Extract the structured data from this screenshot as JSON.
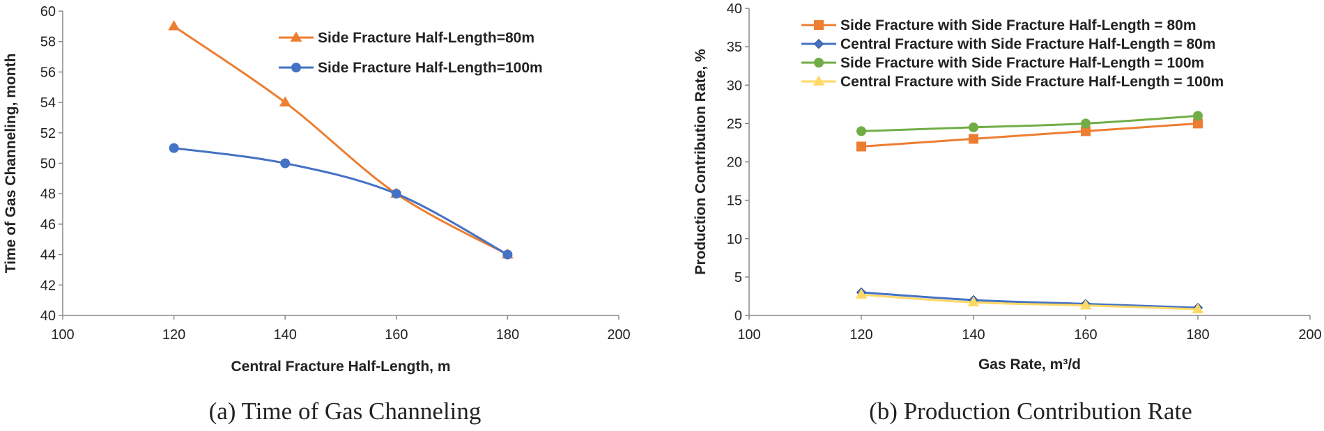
{
  "chart_data": [
    {
      "type": "line",
      "caption": "(a) Time of Gas Channeling",
      "xlabel": "Central Fracture Half-Length, m",
      "ylabel": "Time of Gas Channeling, month",
      "xlim": [
        100,
        200
      ],
      "ylim": [
        40,
        60
      ],
      "xticks": [
        "100",
        "120",
        "140",
        "160",
        "180",
        "200"
      ],
      "yticks": [
        "40",
        "42",
        "44",
        "46",
        "48",
        "50",
        "52",
        "54",
        "56",
        "58",
        "60"
      ],
      "legend_position": "top-right",
      "grid": false,
      "series": [
        {
          "name": "Side Fracture Half-Length=80m",
          "color": "#ED7D31",
          "marker": "triangle",
          "x": [
            120,
            140,
            160,
            180
          ],
          "values": [
            59,
            54,
            48,
            44
          ]
        },
        {
          "name": "Side Fracture Half-Length=100m",
          "color": "#4472C4",
          "marker": "circle",
          "x": [
            120,
            140,
            160,
            180
          ],
          "values": [
            51,
            50,
            48,
            44
          ]
        }
      ]
    },
    {
      "type": "line",
      "caption": "(b) Production Contribution Rate",
      "xlabel": "Gas Rate, m³/d",
      "ylabel": "Production Contribution Rate, %",
      "xlim": [
        100,
        200
      ],
      "ylim": [
        0,
        40
      ],
      "xticks": [
        "100",
        "120",
        "140",
        "160",
        "180",
        "200"
      ],
      "yticks": [
        "0",
        "5",
        "10",
        "15",
        "20",
        "25",
        "30",
        "35",
        "40"
      ],
      "legend_position": "top-right",
      "grid": false,
      "series": [
        {
          "name": "Side Fracture with Side Fracture Half-Length = 80m",
          "color": "#ED7D31",
          "marker": "square",
          "x": [
            120,
            140,
            160,
            180
          ],
          "values": [
            22,
            23,
            24,
            25
          ]
        },
        {
          "name": "Central Fracture with Side Fracture Half-Length = 80m",
          "color": "#4472C4",
          "marker": "diamond",
          "x": [
            120,
            140,
            160,
            180
          ],
          "values": [
            3,
            2,
            1.5,
            1
          ]
        },
        {
          "name": "Side Fracture with Side Fracture Half-Length = 100m",
          "color": "#70AD47",
          "marker": "circle",
          "x": [
            120,
            140,
            160,
            180
          ],
          "values": [
            24,
            24.5,
            25,
            26
          ]
        },
        {
          "name": "Central Fracture with Side Fracture Half-Length = 100m",
          "color": "#FFD966",
          "marker": "triangle",
          "x": [
            120,
            140,
            160,
            180
          ],
          "values": [
            2.7,
            1.7,
            1.3,
            0.8
          ]
        }
      ]
    }
  ]
}
